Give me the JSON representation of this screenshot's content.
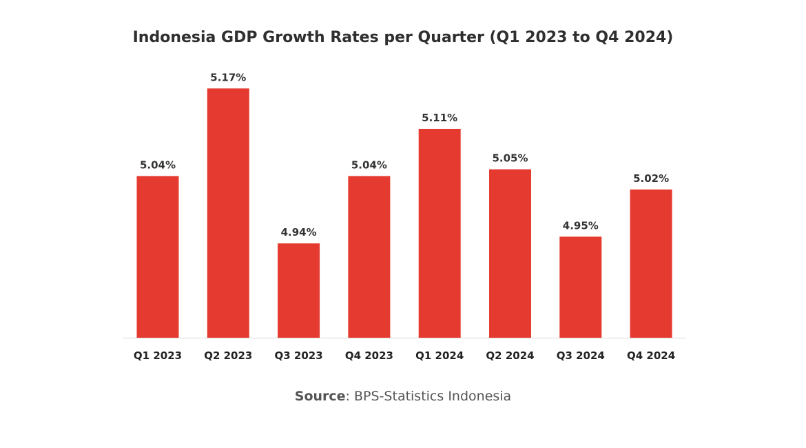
{
  "chart_data": {
    "type": "bar",
    "title": "Indonesia GDP Growth Rates per Quarter (Q1 2023 to Q4 2024)",
    "categories": [
      "Q1 2023",
      "Q2 2023",
      "Q3 2023",
      "Q4 2023",
      "Q1 2024",
      "Q2 2024",
      "Q3 2024",
      "Q4 2024"
    ],
    "values": [
      5.04,
      5.17,
      4.94,
      5.04,
      5.11,
      5.05,
      4.95,
      5.02
    ],
    "data_labels": [
      "5.04%",
      "5.17%",
      "4.94%",
      "5.04%",
      "5.11%",
      "5.05%",
      "4.95%",
      "5.02%"
    ],
    "xlabel": "",
    "ylabel": "",
    "ylim": [
      4.8,
      5.2
    ],
    "grid": false,
    "bar_color": "#e53a2f",
    "label_color": "#333333"
  },
  "source": {
    "label": "Source",
    "text": ": BPS-Statistics Indonesia"
  }
}
